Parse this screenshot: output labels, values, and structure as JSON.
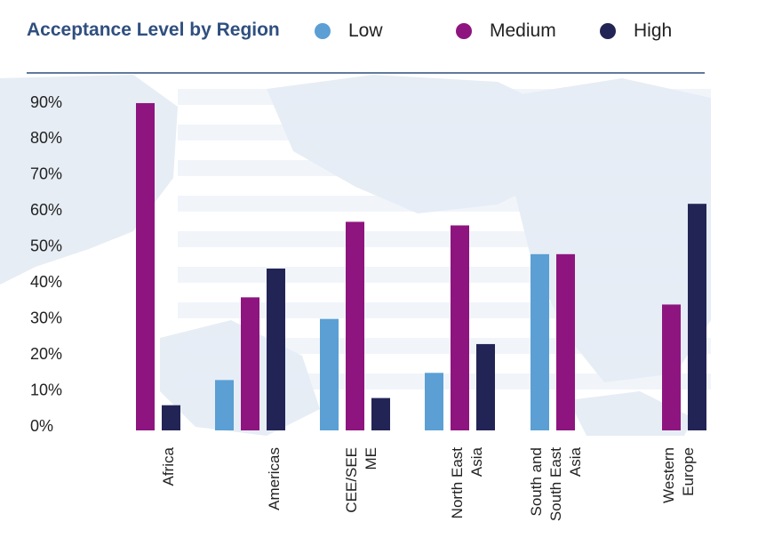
{
  "colors": {
    "low": "#5b9fd4",
    "medium": "#8e157f",
    "high": "#232456",
    "title": "#2f4f7f",
    "rule": "#2f4f7f",
    "background_map": "#e6edf5"
  },
  "chart_data": {
    "type": "bar",
    "title": "Acceptance Level by Region",
    "categories": [
      "Africa",
      "Americas",
      "CEE/SEE ME",
      "North East Asia",
      "South and South East Asia",
      "Western Europe"
    ],
    "category_lines": [
      [
        "Africa"
      ],
      [
        "Americas"
      ],
      [
        "CEE/SEE",
        "ME"
      ],
      [
        "North East",
        "Asia"
      ],
      [
        "South and",
        "South East",
        "Asia"
      ],
      [
        "Western",
        "Europe"
      ]
    ],
    "series": [
      {
        "name": "Low",
        "values": [
          null,
          14,
          31,
          16,
          49,
          null
        ]
      },
      {
        "name": "Medium",
        "values": [
          91,
          37,
          58,
          57,
          49,
          35
        ]
      },
      {
        "name": "High",
        "values": [
          7,
          45,
          9,
          24,
          null,
          63
        ]
      }
    ],
    "y_ticks": [
      "0%",
      "10%",
      "20%",
      "30%",
      "40%",
      "50%",
      "60%",
      "70%",
      "80%",
      "90%"
    ],
    "ylim": [
      0,
      90
    ],
    "legend": "top",
    "grid": false
  }
}
